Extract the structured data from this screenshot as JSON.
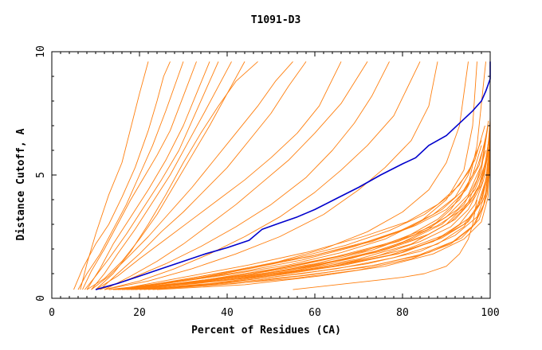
{
  "chart_data": {
    "type": "line",
    "title": "T1091-D3",
    "xlabel": "Percent of Residues (CA)",
    "ylabel": "Distance Cutoff, A",
    "xlim": [
      0,
      100
    ],
    "ylim": [
      0,
      10
    ],
    "xticks": [
      0,
      20,
      40,
      60,
      80,
      100
    ],
    "yticks": [
      0,
      5,
      10
    ],
    "grid": false,
    "legend": "none",
    "colors": {
      "highlight": "#0000cc",
      "others": "#ff7f0e",
      "axis": "#000000"
    },
    "highlight_series": {
      "x": [
        10,
        15,
        20,
        25,
        30,
        35,
        40,
        45,
        48,
        52,
        56,
        60,
        65,
        70,
        75,
        80,
        83,
        86,
        90,
        93,
        96,
        98,
        99,
        100,
        100
      ],
      "y": [
        0.35,
        0.6,
        0.9,
        1.2,
        1.5,
        1.8,
        2.05,
        2.35,
        2.8,
        3.05,
        3.3,
        3.6,
        4.05,
        4.5,
        5.0,
        5.45,
        5.7,
        6.2,
        6.6,
        7.1,
        7.6,
        8.0,
        8.4,
        8.9,
        9.6
      ]
    },
    "other_series": [
      {
        "x": [
          5.0,
          7.0,
          10.0,
          13.0,
          16.0,
          19.0,
          22.0,
          24.0,
          25.5,
          27.0
        ],
        "y": [
          0.35,
          1.2,
          2.2,
          3.0,
          4.1,
          5.3,
          6.8,
          8.0,
          9.0,
          9.6
        ]
      },
      {
        "x": [
          6.0,
          8.0,
          11.0,
          14.0,
          17.0,
          20.0,
          23.0,
          26.0,
          28.0,
          30.0
        ],
        "y": [
          0.35,
          1.0,
          1.8,
          2.8,
          3.8,
          5.0,
          6.2,
          7.6,
          8.6,
          9.6
        ]
      },
      {
        "x": [
          7.0,
          9.0,
          12.0,
          15.0,
          18.0,
          21.0,
          24.0,
          27.0,
          30.0,
          33.0
        ],
        "y": [
          0.35,
          1.1,
          2.0,
          3.0,
          4.0,
          4.9,
          5.8,
          6.8,
          8.2,
          9.6
        ]
      },
      {
        "x": [
          6.5,
          8.0,
          10.0,
          13.0,
          16.0,
          18.0,
          20.0,
          22.0
        ],
        "y": [
          0.35,
          1.4,
          2.6,
          4.2,
          5.5,
          6.9,
          8.3,
          9.6
        ]
      },
      {
        "x": [
          8.0,
          11.0,
          14.0,
          18.0,
          22.0,
          26.0,
          30.0,
          33.0,
          36.0
        ],
        "y": [
          0.35,
          1.2,
          2.2,
          3.3,
          4.4,
          5.6,
          7.0,
          8.3,
          9.6
        ]
      },
      {
        "x": [
          7.5,
          10.0,
          13.0,
          17.0,
          21.0,
          25.0,
          29.0,
          32.0,
          35.0,
          38.0
        ],
        "y": [
          0.35,
          0.9,
          1.6,
          2.6,
          3.7,
          4.8,
          6.0,
          7.2,
          8.4,
          9.6
        ]
      },
      {
        "x": [
          9.0,
          12.0,
          15.0,
          19.0,
          23.0,
          27.0,
          31.0,
          35.0,
          38.0,
          41.0
        ],
        "y": [
          0.35,
          1.0,
          1.8,
          2.8,
          3.9,
          5.0,
          6.3,
          7.6,
          8.6,
          9.6
        ]
      },
      {
        "x": [
          8.0,
          12.0,
          16.0,
          20.0,
          24.0,
          28.0,
          32.0,
          36.0,
          40.0,
          44.0
        ],
        "y": [
          0.35,
          0.8,
          1.5,
          2.4,
          3.4,
          4.6,
          5.8,
          7.0,
          8.3,
          9.6
        ]
      },
      {
        "x": [
          10.0,
          14.0,
          18.0,
          22.0,
          26.0,
          30.0,
          34.0,
          38.0,
          42.0,
          47.0
        ],
        "y": [
          0.35,
          1.0,
          1.9,
          3.0,
          4.2,
          5.5,
          6.7,
          7.8,
          8.8,
          9.6
        ]
      },
      {
        "x": [
          9.0,
          13.0,
          17.0,
          22.0,
          27.0,
          32.0,
          37.0,
          42.0,
          47.0,
          51.0,
          55.0
        ],
        "y": [
          0.35,
          0.9,
          1.6,
          2.5,
          3.5,
          4.5,
          5.6,
          6.7,
          7.8,
          8.8,
          9.6
        ]
      },
      {
        "x": [
          11.0,
          15.0,
          20.0,
          25.0,
          30.0,
          35.0,
          40.0,
          45.0,
          50.0,
          54.0,
          58.0
        ],
        "y": [
          0.35,
          1.0,
          1.8,
          2.7,
          3.5,
          4.4,
          5.3,
          6.4,
          7.5,
          8.6,
          9.6
        ]
      },
      {
        "x": [
          10.0,
          15.0,
          20.0,
          26.0,
          32.0,
          38.0,
          44.0,
          50.0,
          56.0,
          61.0,
          66.0
        ],
        "y": [
          0.35,
          0.9,
          1.6,
          2.4,
          3.2,
          4.0,
          4.8,
          5.7,
          6.7,
          7.8,
          9.6
        ]
      },
      {
        "x": [
          12.0,
          18.0,
          24.0,
          30.0,
          36.0,
          42.0,
          48.0,
          54.0,
          60.0,
          66.0,
          72.0
        ],
        "y": [
          0.35,
          0.9,
          1.5,
          2.2,
          3.0,
          3.8,
          4.7,
          5.6,
          6.7,
          7.9,
          9.6
        ]
      },
      {
        "x": [
          11.0,
          18.0,
          26.0,
          34.0,
          42.0,
          50.0,
          58.0,
          64.0,
          69.0,
          73.0,
          77.0
        ],
        "y": [
          0.35,
          0.8,
          1.4,
          2.1,
          2.9,
          3.8,
          4.9,
          6.0,
          7.1,
          8.2,
          9.6
        ]
      },
      {
        "x": [
          12.0,
          20.0,
          28.0,
          36.0,
          44.0,
          52.0,
          60.0,
          66.0,
          72.0,
          78.0,
          84.0
        ],
        "y": [
          0.35,
          0.7,
          1.2,
          1.8,
          2.5,
          3.3,
          4.3,
          5.2,
          6.2,
          7.4,
          9.6
        ]
      },
      {
        "x": [
          12.0,
          22.0,
          32.0,
          42.0,
          52.0,
          62.0,
          70.0,
          76.0,
          82.0,
          86.0,
          88.0
        ],
        "y": [
          0.35,
          0.7,
          1.2,
          1.8,
          2.5,
          3.4,
          4.4,
          5.3,
          6.4,
          7.8,
          9.6
        ]
      },
      {
        "x": [
          13.0,
          25.0,
          38.0,
          50.0,
          62.0,
          72.0,
          80.0,
          86.0,
          90.0,
          93.0,
          95.0
        ],
        "y": [
          0.35,
          0.6,
          0.95,
          1.4,
          2.0,
          2.7,
          3.5,
          4.4,
          5.5,
          7.0,
          9.6
        ]
      },
      {
        "x": [
          13.0,
          26.0,
          40.0,
          54.0,
          66.0,
          76.0,
          84.0,
          90.0,
          94.0,
          96.0,
          97.0
        ],
        "y": [
          0.35,
          0.6,
          0.95,
          1.35,
          1.85,
          2.4,
          3.1,
          4.0,
          5.2,
          7.0,
          9.6
        ]
      },
      {
        "x": [
          14.0,
          28.0,
          42.0,
          56.0,
          68.0,
          78.0,
          86.0,
          91.0,
          95.0,
          97.0,
          99.0
        ],
        "y": [
          0.35,
          0.55,
          0.85,
          1.2,
          1.6,
          2.1,
          2.8,
          3.6,
          4.6,
          6.2,
          9.6
        ]
      },
      {
        "x": [
          55.0,
          65.0,
          75.0,
          80.0,
          85.0,
          90.0,
          93.0,
          95.0,
          96.0,
          97.0
        ],
        "y": [
          0.35,
          0.55,
          0.75,
          0.85,
          1.0,
          1.3,
          1.8,
          2.4,
          3.0,
          4.0
        ]
      },
      {
        "x": [
          14.0,
          28.0,
          42.0,
          56.0,
          70.0,
          82.0,
          90.0,
          95.0,
          98.0,
          99.5
        ],
        "y": [
          0.35,
          0.55,
          0.8,
          1.15,
          1.6,
          2.2,
          3.0,
          3.9,
          5.2,
          7.0
        ]
      },
      {
        "x": [
          15.0,
          30.0,
          45.0,
          60.0,
          72.0,
          82.0,
          89.0,
          94.0,
          97.0,
          99.0
        ],
        "y": [
          0.35,
          0.6,
          0.9,
          1.3,
          1.8,
          2.4,
          3.0,
          3.8,
          4.8,
          6.0
        ]
      },
      {
        "x": [
          15.0,
          29.0,
          44.0,
          58.0,
          71.0,
          81.0,
          88.0,
          93.0,
          96.0,
          98.0
        ],
        "y": [
          0.35,
          0.62,
          0.95,
          1.4,
          1.9,
          2.5,
          3.2,
          4.0,
          5.0,
          6.2
        ]
      },
      {
        "x": [
          16.0,
          31.0,
          46.0,
          60.0,
          73.0,
          83.0,
          90.0,
          95.0,
          98.0,
          99.6
        ],
        "y": [
          0.35,
          0.65,
          1.0,
          1.4,
          1.95,
          2.6,
          3.3,
          4.2,
          5.4,
          7.2
        ]
      },
      {
        "x": [
          15.5,
          30.0,
          44.0,
          57.0,
          69.0,
          79.0,
          87.0,
          92.0,
          95.0,
          97.0
        ],
        "y": [
          0.35,
          0.7,
          1.1,
          1.55,
          2.1,
          2.7,
          3.4,
          4.1,
          5.0,
          6.0
        ]
      },
      {
        "x": [
          16.0,
          32.0,
          47.0,
          61.0,
          74.0,
          84.0,
          91.0,
          95.0,
          98.0,
          99.5
        ],
        "y": [
          0.35,
          0.6,
          0.9,
          1.25,
          1.7,
          2.3,
          2.9,
          3.6,
          4.6,
          6.0
        ]
      },
      {
        "x": [
          17.0,
          33.0,
          48.0,
          62.0,
          75.0,
          85.0,
          91.0,
          95.0,
          97.5,
          99.0
        ],
        "y": [
          0.35,
          0.65,
          1.0,
          1.4,
          1.9,
          2.5,
          3.1,
          3.8,
          4.6,
          5.6
        ]
      },
      {
        "x": [
          16.5,
          31.0,
          45.0,
          59.0,
          72.0,
          82.0,
          89.0,
          94.0,
          97.0,
          99.0
        ],
        "y": [
          0.35,
          0.75,
          1.2,
          1.7,
          2.3,
          2.9,
          3.6,
          4.4,
          5.3,
          6.4
        ]
      },
      {
        "x": [
          17.0,
          33.0,
          49.0,
          64.0,
          77.0,
          87.0,
          93.0,
          96.5,
          98.5,
          99.8
        ],
        "y": [
          0.35,
          0.6,
          0.9,
          1.3,
          1.75,
          2.3,
          3.0,
          3.8,
          4.8,
          6.2
        ]
      },
      {
        "x": [
          18.0,
          34.0,
          50.0,
          65.0,
          78.0,
          88.0,
          94.0,
          97.0,
          99.0,
          100.0
        ],
        "y": [
          0.35,
          0.55,
          0.85,
          1.2,
          1.65,
          2.2,
          2.9,
          3.7,
          4.8,
          6.5
        ]
      },
      {
        "x": [
          14.5,
          28.0,
          42.0,
          55.0,
          67.0,
          77.0,
          85.0,
          91.0,
          95.0,
          98.0
        ],
        "y": [
          0.35,
          0.7,
          1.15,
          1.6,
          2.15,
          2.75,
          3.4,
          4.2,
          5.1,
          6.4
        ]
      },
      {
        "x": [
          18.0,
          35.0,
          51.0,
          66.0,
          79.0,
          88.0,
          94.0,
          97.5,
          99.2,
          100.0
        ],
        "y": [
          0.35,
          0.65,
          0.95,
          1.35,
          1.8,
          2.4,
          3.0,
          3.8,
          4.9,
          6.8
        ]
      },
      {
        "x": [
          19.0,
          36.0,
          52.0,
          67.0,
          80.0,
          89.0,
          95.0,
          98.0,
          99.5,
          100.0
        ],
        "y": [
          0.35,
          0.6,
          0.95,
          1.35,
          1.85,
          2.45,
          3.1,
          3.9,
          5.0,
          7.0
        ]
      },
      {
        "x": [
          17.5,
          34.0,
          50.0,
          64.0,
          76.0,
          86.0,
          92.0,
          96.0,
          98.5,
          99.8
        ],
        "y": [
          0.35,
          0.7,
          1.05,
          1.5,
          2.0,
          2.6,
          3.2,
          4.0,
          5.0,
          6.6
        ]
      },
      {
        "x": [
          20.0,
          38.0,
          55.0,
          70.0,
          82.0,
          91.0,
          96.0,
          98.5,
          99.6,
          100.0
        ],
        "y": [
          0.35,
          0.55,
          0.8,
          1.15,
          1.6,
          2.2,
          2.9,
          3.8,
          5.0,
          7.4
        ]
      },
      {
        "x": [
          16.0,
          31.0,
          46.0,
          60.0,
          73.0,
          83.0,
          90.0,
          94.5,
          97.5,
          99.3
        ],
        "y": [
          0.35,
          0.8,
          1.25,
          1.75,
          2.3,
          2.95,
          3.6,
          4.4,
          5.4,
          6.8
        ]
      },
      {
        "x": [
          15.0,
          30.0,
          45.0,
          59.0,
          71.0,
          81.0,
          88.0,
          93.0,
          96.5,
          98.8
        ],
        "y": [
          0.35,
          0.85,
          1.35,
          1.9,
          2.5,
          3.1,
          3.8,
          4.6,
          5.6,
          7.0
        ]
      },
      {
        "x": [
          19.0,
          37.0,
          54.0,
          69.0,
          81.0,
          90.0,
          95.5,
          98.2,
          99.4,
          100.0
        ],
        "y": [
          0.35,
          0.7,
          1.05,
          1.5,
          2.0,
          2.6,
          3.3,
          4.1,
          5.2,
          7.2
        ]
      },
      {
        "x": [
          21.0,
          39.0,
          56.0,
          71.0,
          83.0,
          91.5,
          96.5,
          98.8,
          99.7,
          100.0
        ],
        "y": [
          0.35,
          0.6,
          0.9,
          1.25,
          1.7,
          2.3,
          3.0,
          3.9,
          5.0,
          7.0
        ]
      },
      {
        "x": [
          18.5,
          35.0,
          51.0,
          65.0,
          77.0,
          86.5,
          92.5,
          96.5,
          98.8,
          100.0
        ],
        "y": [
          0.35,
          0.75,
          1.2,
          1.7,
          2.25,
          2.9,
          3.6,
          4.4,
          5.4,
          6.8
        ]
      },
      {
        "x": [
          20.0,
          37.0,
          53.0,
          67.0,
          79.0,
          88.0,
          94.0,
          97.5,
          99.2,
          100.0
        ],
        "y": [
          0.35,
          0.8,
          1.25,
          1.75,
          2.3,
          2.95,
          3.65,
          4.5,
          5.6,
          7.2
        ]
      },
      {
        "x": [
          22.0,
          40.0,
          57.0,
          72.0,
          84.0,
          92.0,
          97.0,
          99.0,
          100.0
        ],
        "y": [
          0.35,
          0.65,
          1.0,
          1.4,
          1.9,
          2.55,
          3.3,
          4.3,
          6.0
        ]
      },
      {
        "x": [
          23.0,
          42.0,
          59.0,
          74.0,
          86.0,
          93.5,
          97.5,
          99.3,
          100.0
        ],
        "y": [
          0.35,
          0.6,
          0.95,
          1.35,
          1.85,
          2.45,
          3.2,
          4.2,
          5.8
        ]
      },
      {
        "x": [
          24.0,
          44.0,
          61.0,
          76.0,
          87.0,
          94.0,
          98.0,
          99.5,
          100.0
        ],
        "y": [
          0.35,
          0.55,
          0.9,
          1.3,
          1.8,
          2.4,
          3.1,
          4.1,
          5.6
        ]
      }
    ]
  }
}
